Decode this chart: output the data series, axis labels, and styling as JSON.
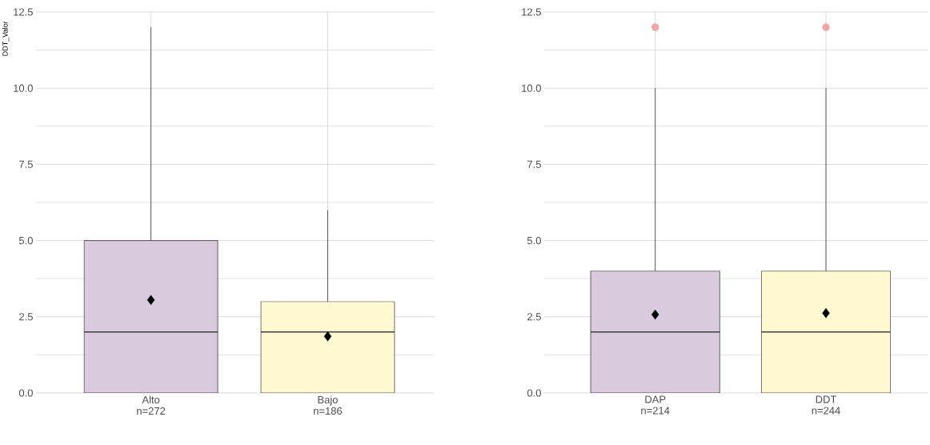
{
  "chart_data": [
    {
      "type": "box",
      "ylabel": "DDT_Valor",
      "categories": [
        "Alto n=272",
        "Bajo n=186"
      ],
      "boxes": [
        {
          "low": 0,
          "q1": 0,
          "median": 2,
          "q3": 5,
          "high": 12,
          "mean": 3.05
        },
        {
          "low": 0,
          "q1": 0,
          "median": 2,
          "q3": 3,
          "high": 6,
          "mean": 1.86
        }
      ],
      "colors": [
        "#d9cbdd",
        "#fff8d0"
      ],
      "ylim": [
        0,
        12.5
      ],
      "yticks": [
        {
          "value": 0,
          "label": "0.0"
        },
        {
          "value": 2.5,
          "label": "2.5"
        },
        {
          "value": 5,
          "label": "5.0"
        },
        {
          "value": 7.5,
          "label": "7.5"
        },
        {
          "value": 10,
          "label": "10.0"
        },
        {
          "value": 12.5,
          "label": "12.5"
        }
      ],
      "grid": true,
      "marker": "diamond"
    },
    {
      "type": "box",
      "categories": [
        "DAP n=214",
        "DDT n=244"
      ],
      "boxes": [
        {
          "low": 0,
          "q1": 0,
          "median": 2,
          "q3": 4,
          "high": 10,
          "mean": 2.57,
          "outliers": [
            12
          ]
        },
        {
          "low": 0,
          "q1": 0,
          "median": 2,
          "q3": 4,
          "high": 10,
          "mean": 2.62,
          "outliers": [
            12
          ]
        }
      ],
      "colors": [
        "#d9cbdd",
        "#fff8d0"
      ],
      "ylim": [
        0,
        12.5
      ],
      "yticks": [
        {
          "value": 0,
          "label": "0.0"
        },
        {
          "value": 2.5,
          "label": "2.5"
        },
        {
          "value": 5,
          "label": "5.0"
        },
        {
          "value": 7.5,
          "label": "7.5"
        },
        {
          "value": 10,
          "label": "10.0"
        },
        {
          "value": 12.5,
          "label": "12.5"
        }
      ],
      "grid": true,
      "marker": "diamond"
    }
  ]
}
